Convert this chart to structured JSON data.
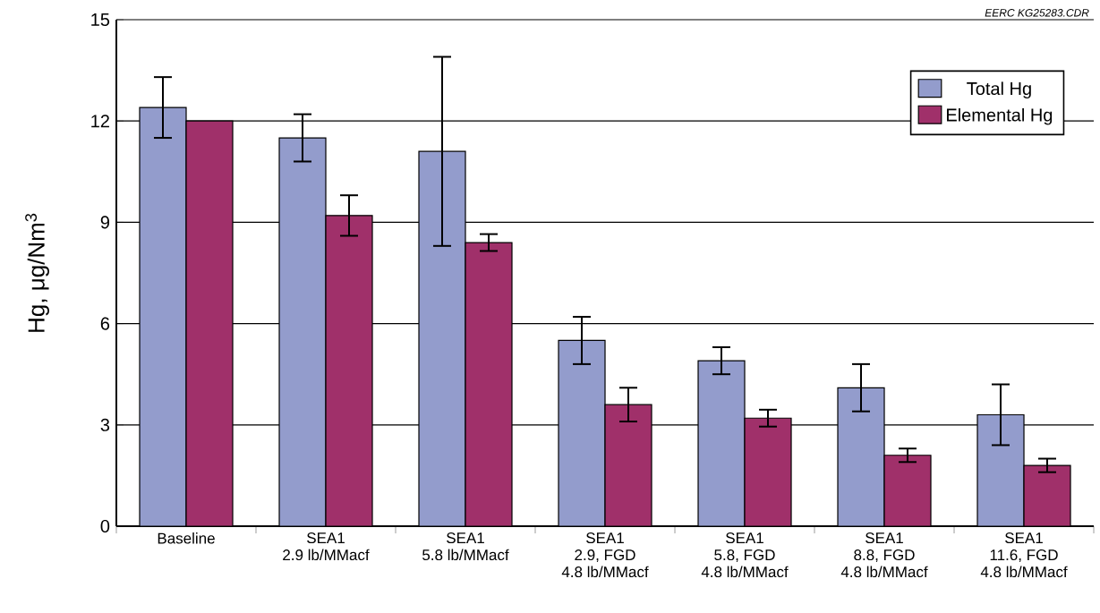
{
  "chart_data": {
    "type": "bar",
    "categories": [
      "Baseline",
      "SEA1\n2.9 lb/MMacf",
      "SEA1\n5.8 lb/MMacf",
      "SEA1\n2.9, FGD\n4.8 lb/MMacf",
      "SEA1\n5.8, FGD\n4.8 lb/MMacf",
      "SEA1\n8.8, FGD\n4.8 lb/MMacf",
      "SEA1\n11.6, FGD\n4.8 lb/MMacf"
    ],
    "series": [
      {
        "name": "Total Hg",
        "color": "#939ccc",
        "values": [
          12.4,
          11.5,
          11.1,
          5.5,
          4.9,
          4.1,
          3.3
        ],
        "errors": [
          0.9,
          0.7,
          2.8,
          0.7,
          0.4,
          0.7,
          0.9
        ]
      },
      {
        "name": "Elemental Hg",
        "color": "#a0306a",
        "values": [
          12.0,
          9.2,
          8.4,
          3.6,
          3.2,
          2.1,
          1.8
        ],
        "errors": [
          null,
          0.6,
          0.25,
          0.5,
          0.25,
          0.2,
          0.2
        ]
      }
    ],
    "ylabel": "Hg, μg/Nm$^{3}$",
    "ylim": [
      0,
      15
    ],
    "yticks": [
      0,
      3,
      6,
      9,
      12,
      15
    ],
    "grid": "y",
    "legend": "top right",
    "annotations": [
      "EERC KG25283.CDR"
    ]
  }
}
